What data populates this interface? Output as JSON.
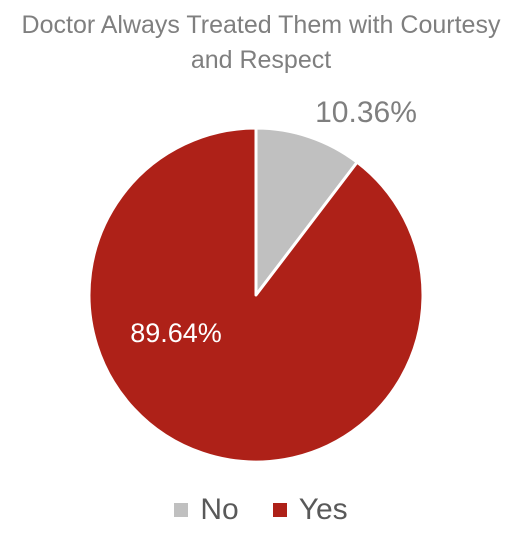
{
  "chart_data": {
    "type": "pie",
    "title": "Doctor Always Treated Them with Courtesy and Respect",
    "title_lines": [
      "Doctor Always Treated Them with Courtesy",
      "and Respect"
    ],
    "slices": [
      {
        "label": "No",
        "value": 10.36,
        "display": "10.36%",
        "color": "#c0c0c0",
        "label_color": "#7f7f7f"
      },
      {
        "label": "Yes",
        "value": 89.64,
        "display": "89.64%",
        "color": "#ae2118",
        "label_color": "#ffffff"
      }
    ],
    "legend_position": "bottom"
  }
}
